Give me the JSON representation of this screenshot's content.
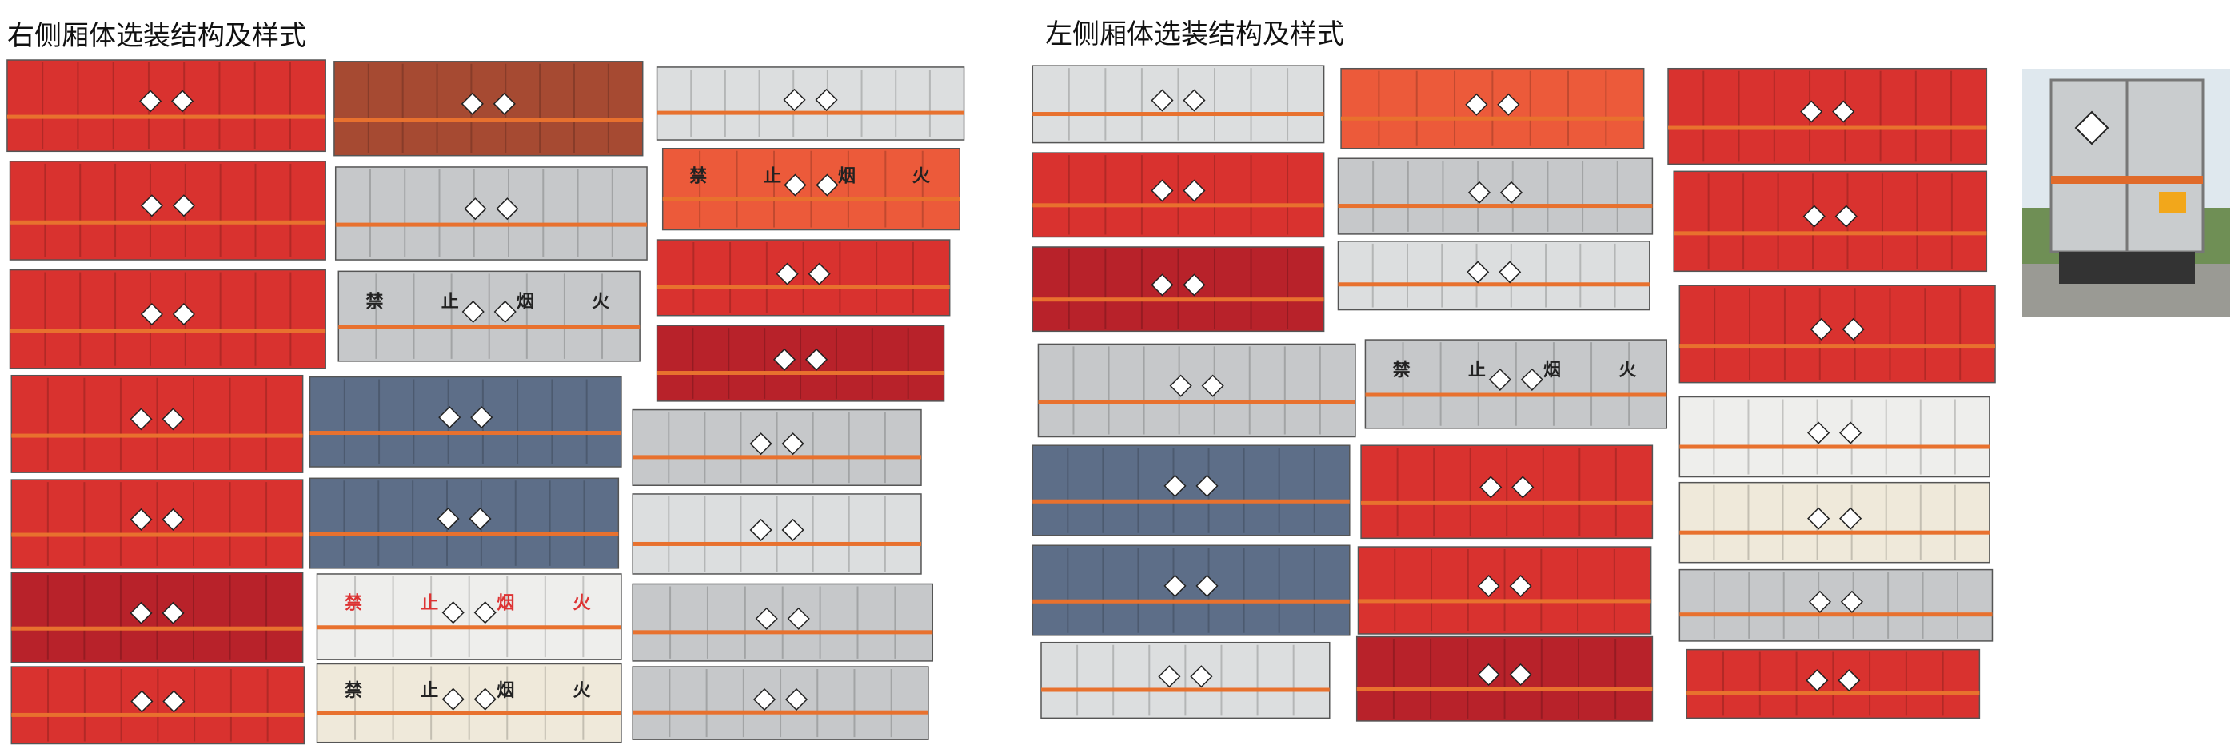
{
  "sections": [
    {
      "title": "右侧厢体选装结构及样式"
    },
    {
      "title": "左侧厢体选装结构及样式"
    }
  ],
  "sign_text": [
    "禁",
    "止",
    "烟",
    "火"
  ]
}
